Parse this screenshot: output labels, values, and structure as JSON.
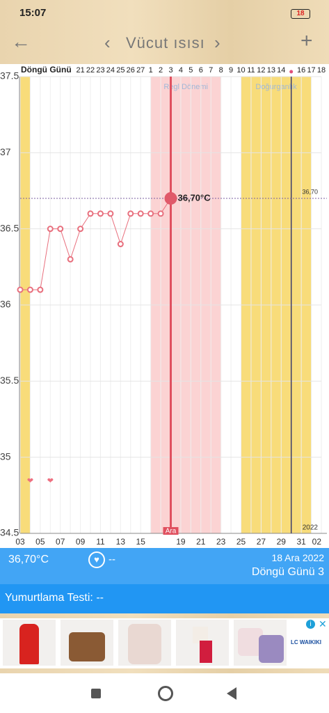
{
  "status_bar": {
    "time": "15:07",
    "battery": "18"
  },
  "header": {
    "back": "←",
    "prev": "‹",
    "title": "Vücut ısısı",
    "next": "›",
    "add": "+"
  },
  "chart_data": {
    "type": "line",
    "cycle_label": "Döngü Günü",
    "cycle_days": [
      null,
      null,
      null,
      null,
      null,
      null,
      21,
      22,
      23,
      24,
      25,
      26,
      27,
      1,
      2,
      3,
      4,
      5,
      6,
      7,
      8,
      9,
      10,
      11,
      12,
      13,
      14,
      null,
      16,
      17,
      18
    ],
    "categories": [
      "03",
      null,
      "05",
      null,
      "07",
      null,
      "09",
      null,
      "11",
      null,
      "13",
      null,
      "15",
      null,
      null,
      null,
      "19",
      null,
      "21",
      null,
      "23",
      null,
      "25",
      null,
      "27",
      null,
      "29",
      null,
      "31",
      null,
      "02"
    ],
    "month_label": "Ara",
    "year_label": "2022",
    "series": [
      {
        "color": "#e86f7d",
        "values": [
          36.1,
          36.1,
          36.1,
          36.5,
          36.5,
          36.3,
          36.5,
          36.6,
          36.6,
          36.6,
          36.4,
          36.6,
          36.6,
          36.6,
          36.6,
          36.7,
          null,
          null,
          null,
          null,
          null,
          null,
          null,
          null,
          null,
          null,
          null,
          null,
          null,
          null,
          null
        ],
        "value_labels": [
          null,
          null,
          null,
          null,
          null,
          null,
          null,
          null,
          null,
          null,
          null,
          null,
          null,
          null,
          null,
          "36,70°C",
          null,
          null,
          null,
          null,
          null,
          null,
          null,
          null,
          null,
          null,
          null,
          null,
          null,
          null,
          null
        ]
      }
    ],
    "hearts": [
      null,
      true,
      null,
      true,
      null,
      null,
      null,
      null,
      null,
      null,
      null,
      null,
      null,
      null,
      null,
      null,
      null,
      null,
      null,
      null,
      null,
      null,
      null,
      null,
      null,
      null,
      null,
      null,
      null,
      null,
      null
    ],
    "bands": [
      {
        "color": "#f8dc7a",
        "start": 0,
        "end": 1
      },
      {
        "label": "Regl Dönemi",
        "color": "#fbd3d3",
        "start": 13,
        "end": 20
      },
      {
        "label": "Doğurganlık",
        "color": "#f8dc7a",
        "start": 22,
        "end": 29
      }
    ],
    "reference_line": {
      "value": 36.7,
      "label": "36,70"
    },
    "ylim": [
      34.5,
      37.5
    ],
    "yticks": [
      34.5,
      35,
      35.5,
      36,
      36.5,
      37,
      37.5
    ],
    "grid": true
  },
  "info": {
    "temperature": "36,70°C",
    "note": "--",
    "date": "18 Ara 2022",
    "cycle_day": "Döngü Günü 3"
  },
  "ovulation_test": "Yumurtlama Testi: --",
  "ad": {
    "brand": "LC WAIKIKI"
  }
}
